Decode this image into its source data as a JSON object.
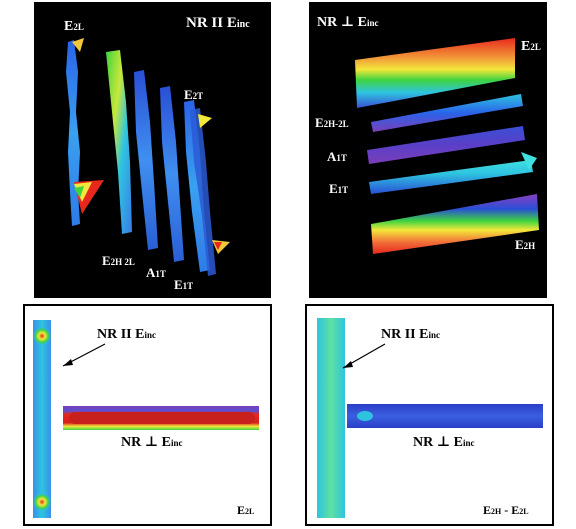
{
  "panels": {
    "top_left": {
      "title": "NR II E",
      "title_sub": "inc",
      "labels": {
        "e2l": "E",
        "e2l_sub": "2L",
        "e2t": "E",
        "e2t_sub": "2T",
        "e2h2l": "E",
        "e2h2l_sub": "2H 2L",
        "a1t": "A",
        "a1t_sub": "1T",
        "e1t": "E",
        "e1t_sub": "1T"
      }
    },
    "top_right": {
      "title": "NR ⊥ E",
      "title_sub": "inc",
      "labels": {
        "e2l": "E",
        "e2l_sub": "2L",
        "e2h2l": "E",
        "e2h2l_sub": "2H-2L",
        "a1t": "A",
        "a1t_sub": "1T",
        "e1t": "E",
        "e1t_sub": "1T",
        "e2h": "E",
        "e2h_sub": "2H"
      }
    },
    "bottom_left": {
      "parallel_label": "NR II E",
      "parallel_sub": "inc",
      "perp_label": "NR ⊥ E",
      "perp_sub": "inc",
      "mode": "E",
      "mode_sub": "2L"
    },
    "bottom_right": {
      "parallel_label": "NR II E",
      "parallel_sub": "inc",
      "perp_label": "NR ⊥ E",
      "perp_sub": "inc",
      "mode": "E",
      "mode_sub": "2H",
      "mode_mid": " - E",
      "mode_sub2": "2L"
    }
  },
  "colors": {
    "low": "#2a3fd6",
    "mid": "#2ec4e0",
    "green": "#3fd43f",
    "yellow": "#f2e83a",
    "high": "#e8281c",
    "purple": "#7a3fb8"
  }
}
